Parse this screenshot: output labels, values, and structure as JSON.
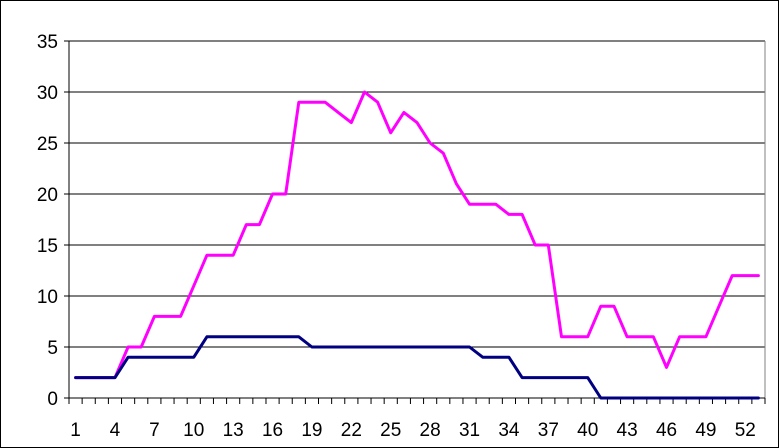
{
  "chart_data": {
    "type": "line",
    "title": "",
    "xlabel": "",
    "ylabel": "",
    "x": [
      1,
      2,
      3,
      4,
      5,
      6,
      7,
      8,
      9,
      10,
      11,
      12,
      13,
      14,
      15,
      16,
      17,
      18,
      19,
      20,
      21,
      22,
      23,
      24,
      25,
      26,
      27,
      28,
      29,
      30,
      31,
      32,
      33,
      34,
      35,
      36,
      37,
      38,
      39,
      40,
      41,
      42,
      43,
      44,
      45,
      46,
      47,
      48,
      49,
      50,
      51,
      52,
      53
    ],
    "x_tick_labels": [
      "1",
      "4",
      "7",
      "10",
      "13",
      "16",
      "19",
      "22",
      "25",
      "28",
      "31",
      "34",
      "37",
      "40",
      "43",
      "46",
      "49",
      "52"
    ],
    "y_tick_labels": [
      "0",
      "5",
      "10",
      "15",
      "20",
      "25",
      "30",
      "35"
    ],
    "ylim": [
      0,
      35
    ],
    "grid": "horizontal",
    "legend": "none",
    "series": [
      {
        "color": "#ff00ff",
        "values": [
          2,
          2,
          2,
          2,
          5,
          5,
          8,
          8,
          8,
          11,
          14,
          14,
          14,
          17,
          17,
          20,
          20,
          29,
          29,
          29,
          28,
          27,
          30,
          29,
          26,
          28,
          27,
          25,
          24,
          21,
          19,
          19,
          19,
          18,
          18,
          15,
          15,
          6,
          6,
          6,
          9,
          9,
          6,
          6,
          6,
          3,
          6,
          6,
          6,
          9,
          12,
          12,
          12
        ]
      },
      {
        "color": "#000080",
        "values": [
          2,
          2,
          2,
          2,
          4,
          4,
          4,
          4,
          4,
          4,
          6,
          6,
          6,
          6,
          6,
          6,
          6,
          6,
          5,
          5,
          5,
          5,
          5,
          5,
          5,
          5,
          5,
          5,
          5,
          5,
          5,
          4,
          4,
          4,
          2,
          2,
          2,
          2,
          2,
          2,
          0,
          0,
          0,
          0,
          0,
          0,
          0,
          0,
          0,
          0,
          0,
          0,
          0
        ]
      }
    ]
  }
}
